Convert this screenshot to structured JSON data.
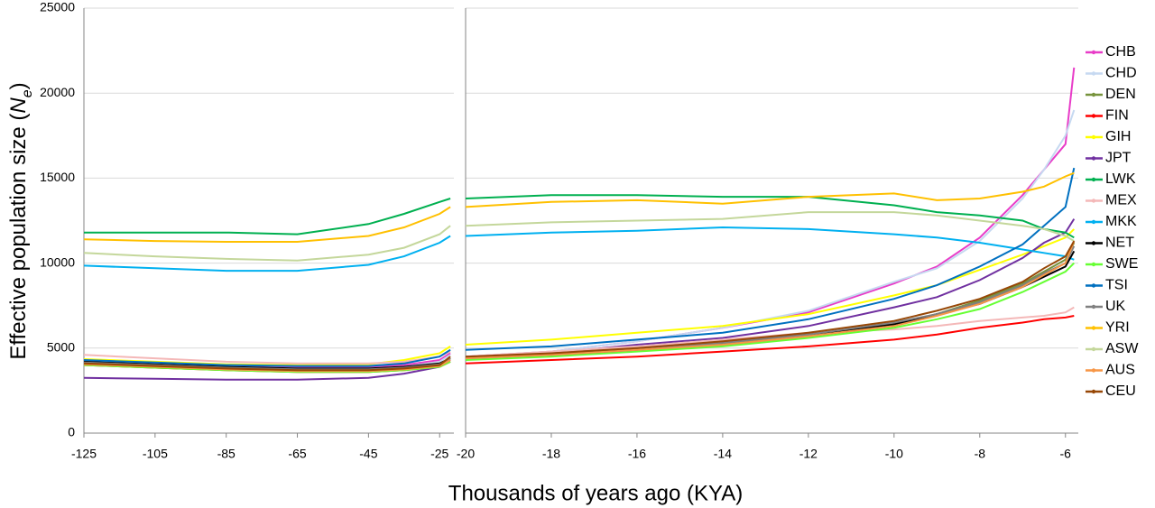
{
  "chart_data": {
    "type": "line",
    "ylabel_parts": [
      "Effective population size (",
      "N",
      "e",
      ")"
    ],
    "xlabel": "Thousands of years ago (KYA)",
    "ylim": [
      0,
      25000
    ],
    "yticks": [
      0,
      5000,
      10000,
      15000,
      20000,
      25000
    ],
    "grid": true,
    "panels": [
      {
        "x": [
          -125,
          -105,
          -85,
          -65,
          -45,
          -35,
          -25,
          -22
        ],
        "xlim": [
          -125,
          -21
        ],
        "xticks": [
          -125,
          -105,
          -85,
          -65,
          -45,
          -25
        ]
      },
      {
        "x": [
          -20,
          -18,
          -16,
          -14,
          -12,
          -10,
          -9,
          -8,
          -7,
          -6.5,
          -6,
          -5.8
        ],
        "xlim": [
          -20,
          -5.7
        ],
        "xticks": [
          -20,
          -18,
          -16,
          -14,
          -12,
          -10,
          -8,
          -6
        ]
      }
    ],
    "series": [
      {
        "name": "CHB",
        "color": "#e83cc8",
        "values": [
          [
            4300,
            4150,
            4000,
            3900,
            3900,
            4000,
            4300,
            4700
          ],
          [
            4500,
            4800,
            5400,
            6200,
            7100,
            8800,
            9800,
            11500,
            14000,
            15500,
            17000,
            21500
          ]
        ]
      },
      {
        "name": "CHD",
        "color": "#c6d9f1",
        "values": [
          [
            4200,
            4050,
            3900,
            3800,
            3800,
            3900,
            4200,
            4600
          ],
          [
            4500,
            4800,
            5400,
            6200,
            7200,
            8900,
            9700,
            11300,
            13800,
            15500,
            17500,
            19000
          ]
        ]
      },
      {
        "name": "DEN",
        "color": "#77933c",
        "values": [
          [
            4100,
            3950,
            3800,
            3700,
            3700,
            3800,
            4000,
            4400
          ],
          [
            4400,
            4600,
            4900,
            5200,
            5700,
            6400,
            7000,
            7800,
            8800,
            9500,
            10200,
            11200
          ]
        ]
      },
      {
        "name": "FIN",
        "color": "#ff0000",
        "values": [
          [
            4000,
            3850,
            3700,
            3600,
            3600,
            3700,
            3900,
            4200
          ],
          [
            4100,
            4300,
            4500,
            4800,
            5100,
            5500,
            5800,
            6200,
            6500,
            6700,
            6800,
            6900
          ]
        ]
      },
      {
        "name": "GIH",
        "color": "#ffff00",
        "values": [
          [
            4350,
            4200,
            4050,
            4000,
            4050,
            4300,
            4700,
            5100
          ],
          [
            5200,
            5500,
            5900,
            6300,
            7000,
            8100,
            8700,
            9600,
            10500,
            11000,
            11500,
            12000
          ]
        ]
      },
      {
        "name": "JPT",
        "color": "#7030a0",
        "values": [
          [
            3250,
            3200,
            3150,
            3150,
            3250,
            3500,
            3900,
            4300
          ],
          [
            4500,
            4700,
            5200,
            5600,
            6300,
            7400,
            8000,
            9000,
            10300,
            11200,
            11800,
            12600
          ]
        ]
      },
      {
        "name": "LWK",
        "color": "#00b050",
        "values": [
          [
            11800,
            11800,
            11800,
            11700,
            12300,
            12900,
            13600,
            13800
          ],
          [
            13800,
            14000,
            14000,
            13900,
            13900,
            13400,
            13000,
            12800,
            12500,
            12000,
            11800,
            11500
          ]
        ]
      },
      {
        "name": "MEX",
        "color": "#f4b8b8",
        "values": [
          [
            4600,
            4400,
            4200,
            4100,
            4100,
            4200,
            4500,
            4800
          ],
          [
            4500,
            4800,
            5100,
            5500,
            5900,
            6100,
            6300,
            6600,
            6800,
            6900,
            7100,
            7400
          ]
        ]
      },
      {
        "name": "MKK",
        "color": "#00b0f0",
        "values": [
          [
            9850,
            9700,
            9550,
            9550,
            9900,
            10400,
            11200,
            11600
          ],
          [
            11600,
            11800,
            11900,
            12100,
            12000,
            11700,
            11500,
            11200,
            10800,
            10600,
            10400,
            10200
          ]
        ]
      },
      {
        "name": "NET",
        "color": "#000000",
        "values": [
          [
            4200,
            4050,
            3900,
            3800,
            3800,
            3900,
            4100,
            4400
          ],
          [
            4400,
            4600,
            4900,
            5300,
            5800,
            6400,
            7000,
            7600,
            8600,
            9200,
            9800,
            10700
          ]
        ]
      },
      {
        "name": "SWE",
        "color": "#66ff33",
        "values": [
          [
            4000,
            3850,
            3700,
            3600,
            3600,
            3700,
            3900,
            4200
          ],
          [
            4300,
            4500,
            4800,
            5100,
            5600,
            6200,
            6700,
            7300,
            8300,
            8900,
            9500,
            10000
          ]
        ]
      },
      {
        "name": "TSI",
        "color": "#0070c0",
        "values": [
          [
            4300,
            4150,
            4000,
            3950,
            3950,
            4100,
            4500,
            4900
          ],
          [
            4900,
            5100,
            5500,
            5900,
            6700,
            7900,
            8700,
            9800,
            11100,
            12200,
            13300,
            15600
          ]
        ]
      },
      {
        "name": "UK",
        "color": "#808080",
        "values": [
          [
            4150,
            4000,
            3850,
            3750,
            3750,
            3850,
            4050,
            4400
          ],
          [
            4400,
            4600,
            4900,
            5300,
            5800,
            6500,
            7000,
            7700,
            8700,
            9400,
            10000,
            11000
          ]
        ]
      },
      {
        "name": "YRI",
        "color": "#ffc000",
        "values": [
          [
            11400,
            11300,
            11250,
            11250,
            11600,
            12100,
            12900,
            13300
          ],
          [
            13300,
            13600,
            13700,
            13500,
            13900,
            14100,
            13700,
            13800,
            14200,
            14500,
            15100,
            15300
          ]
        ]
      },
      {
        "name": "ASW",
        "color": "#c4d79b",
        "values": [
          [
            10600,
            10400,
            10250,
            10150,
            10500,
            10900,
            11700,
            12200
          ],
          [
            12200,
            12400,
            12500,
            12600,
            13000,
            13000,
            12800,
            12500,
            12200,
            12000,
            11600,
            11300
          ]
        ]
      },
      {
        "name": "AUS",
        "color": "#f79646",
        "values": [
          [
            4050,
            3900,
            3750,
            3650,
            3650,
            3750,
            3950,
            4300
          ],
          [
            4400,
            4600,
            4900,
            5200,
            5700,
            6300,
            6900,
            7600,
            8600,
            9300,
            10000,
            11300
          ]
        ]
      },
      {
        "name": "CEU",
        "color": "#974706",
        "values": [
          [
            4100,
            3950,
            3800,
            3700,
            3700,
            3800,
            4000,
            4500
          ],
          [
            4500,
            4700,
            5000,
            5400,
            5900,
            6600,
            7200,
            7900,
            8900,
            9700,
            10400,
            11300
          ]
        ]
      }
    ]
  }
}
